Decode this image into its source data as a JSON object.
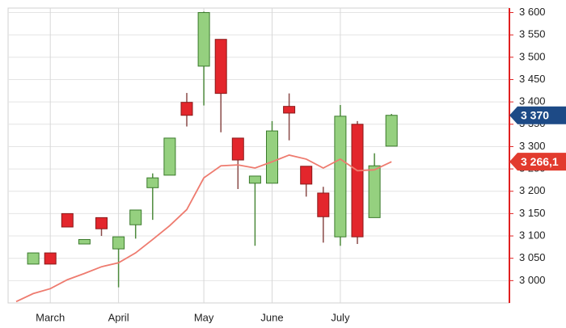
{
  "chart_data": {
    "type": "candlestick",
    "categories": [
      null,
      null,
      "March",
      null,
      null,
      null,
      "April",
      null,
      null,
      null,
      null,
      "May",
      null,
      null,
      null,
      "June",
      null,
      null,
      null,
      "July",
      null,
      null,
      null
    ],
    "open": [
      null,
      3037,
      3062,
      3150,
      3082,
      3141,
      3071,
      3125,
      3208,
      3236,
      3399,
      3480,
      3540,
      3319,
      3218,
      3218,
      3390,
      3256,
      3196,
      3098,
      3350,
      3141,
      3301
    ],
    "high": [
      null,
      3062,
      3062,
      3150,
      3092,
      3141,
      3098,
      3158,
      3240,
      3319,
      3420,
      3602,
      3540,
      3319,
      3234,
      3357,
      3419,
      3256,
      3210,
      3393,
      3357,
      3285,
      3373
    ],
    "low": [
      null,
      3037,
      3037,
      3120,
      3082,
      3100,
      2985,
      3094,
      3136,
      3236,
      3345,
      3392,
      3332,
      3205,
      3078,
      3218,
      3314,
      3188,
      3085,
      3078,
      3082,
      3141,
      3301
    ],
    "close": [
      null,
      3062,
      3037,
      3120,
      3092,
      3116,
      3098,
      3158,
      3230,
      3319,
      3370,
      3600,
      3419,
      3270,
      3234,
      3335,
      3375,
      3216,
      3143,
      3368,
      3098,
      3257,
      3370
    ],
    "up_color": "#95d07f",
    "down_color": "#e3262c",
    "moving_average": {
      "color": "#ee7b6f",
      "values": [
        2953,
        2971,
        2982,
        3002,
        3016,
        3031,
        3040,
        3062,
        3092,
        3123,
        3159,
        3230,
        3257,
        3259,
        3252,
        3266,
        3281,
        3272,
        3252,
        3272,
        3246,
        3248,
        3266.1
      ]
    },
    "ylim": [
      2950,
      3610
    ],
    "yticks": [
      {
        "value": 3000,
        "label": "3 000"
      },
      {
        "value": 3050,
        "label": "3 050"
      },
      {
        "value": 3100,
        "label": "3 100"
      },
      {
        "value": 3150,
        "label": "3 150"
      },
      {
        "value": 3200,
        "label": "3 200"
      },
      {
        "value": 3250,
        "label": "3 250"
      },
      {
        "value": 3300,
        "label": "3 300"
      },
      {
        "value": 3350,
        "label": "3 350"
      },
      {
        "value": 3400,
        "label": "3 400"
      },
      {
        "value": 3450,
        "label": "3 450"
      },
      {
        "value": 3500,
        "label": "3 500"
      },
      {
        "value": 3550,
        "label": "3 550"
      },
      {
        "value": 3600,
        "label": "3 600"
      }
    ],
    "grid": true,
    "annotations": [
      {
        "value": 3370,
        "label": "3 370",
        "color": "#1d4a86"
      },
      {
        "value": 3266.1,
        "label": "3 266,1",
        "color": "#e23b2e"
      }
    ]
  }
}
